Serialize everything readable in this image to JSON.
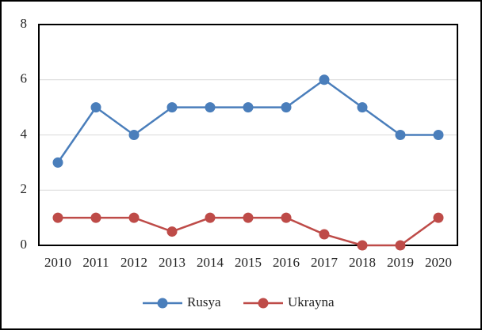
{
  "chart_data": {
    "type": "line",
    "categories": [
      "2010",
      "2011",
      "2012",
      "2013",
      "2014",
      "2015",
      "2016",
      "2017",
      "2018",
      "2019",
      "2020"
    ],
    "series": [
      {
        "name": "Rusya",
        "color": "#4a7ebb",
        "values": [
          3,
          5,
          4,
          5,
          5,
          5,
          5,
          6,
          5,
          4,
          4
        ]
      },
      {
        "name": "Ukrayna",
        "color": "#be4b48",
        "values": [
          1,
          1,
          1,
          0.5,
          1,
          1,
          1,
          0.4,
          0,
          0,
          1
        ]
      }
    ],
    "ylim": [
      0,
      8
    ],
    "yticks": [
      0,
      2,
      4,
      6,
      8
    ],
    "grid": true,
    "legend": "bottom"
  }
}
